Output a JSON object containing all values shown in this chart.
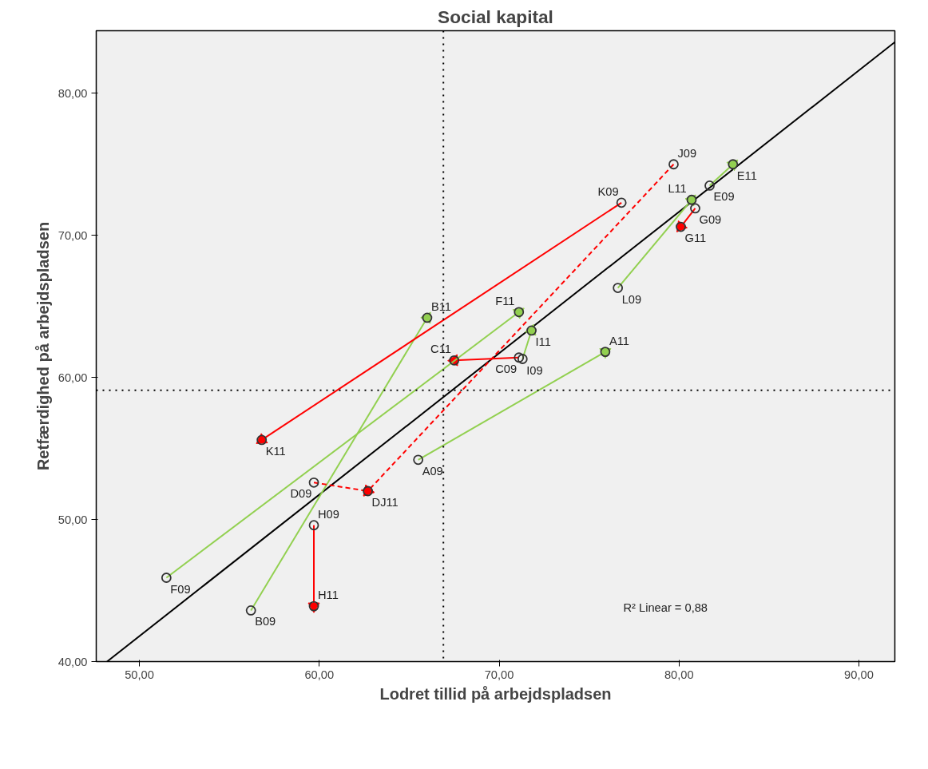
{
  "chart_data": {
    "type": "scatter",
    "title": "Social kapital",
    "xlabel": "Lodret tillid på arbejdspladsen",
    "ylabel": "Retfærdighed på arbejdspladsen",
    "xlim": [
      47.6,
      92.0
    ],
    "ylim": [
      40,
      84.4
    ],
    "xticks": [
      {
        "value": 50,
        "label": "50,00"
      },
      {
        "value": 60,
        "label": "60,00"
      },
      {
        "value": 70,
        "label": "70,00"
      },
      {
        "value": 80,
        "label": "80,00"
      },
      {
        "value": 90,
        "label": "90,00"
      }
    ],
    "yticks": [
      {
        "value": 40,
        "label": "40,00"
      },
      {
        "value": 50,
        "label": "50,00"
      },
      {
        "value": 60,
        "label": "60,00"
      },
      {
        "value": 70,
        "label": "70,00"
      },
      {
        "value": 80,
        "label": "80,00"
      }
    ],
    "grid": false,
    "marker": "circle",
    "series": [
      {
        "color": "#333333",
        "x": [
          65.5,
          75.9,
          56.2,
          66.0,
          71.1,
          67.5,
          59.7,
          62.7,
          81.7,
          83.0,
          51.5,
          71.1,
          80.9,
          80.1,
          59.7,
          59.7,
          71.3,
          71.8,
          79.7,
          76.8,
          56.8,
          76.6,
          80.7
        ],
        "values": [
          54.2,
          61.8,
          43.6,
          64.2,
          61.4,
          61.2,
          52.6,
          52.0,
          73.5,
          75.0,
          45.9,
          64.6,
          71.9,
          70.6,
          49.6,
          43.9,
          61.3,
          63.3,
          75.0,
          72.3,
          55.6,
          66.3,
          72.5
        ]
      },
      {
        "type": "line",
        "color": "#000000",
        "marker": "none",
        "line_style": "solid",
        "x": [
          48.2,
          92.0
        ],
        "values": [
          40.0,
          83.6
        ]
      },
      {
        "type": "line",
        "color": "#92d050",
        "marker": "triangle",
        "line_style": "solid",
        "x": [
          65.5,
          75.9
        ],
        "values": [
          54.2,
          61.8
        ]
      },
      {
        "type": "line",
        "color": "#92d050",
        "marker": "triangle",
        "line_style": "solid",
        "x": [
          56.2,
          66.0
        ],
        "values": [
          43.6,
          64.2
        ]
      },
      {
        "type": "line",
        "color": "#ff0000",
        "marker": "triangle",
        "line_style": "solid",
        "x": [
          71.1,
          67.5
        ],
        "values": [
          61.4,
          61.2
        ]
      },
      {
        "type": "line",
        "color": "#ff0000",
        "marker": "triangle",
        "line_style": "dashed",
        "x": [
          59.7,
          62.7
        ],
        "values": [
          52.6,
          52.0
        ]
      },
      {
        "type": "line",
        "color": "#92d050",
        "marker": "triangle",
        "line_style": "solid",
        "x": [
          81.7,
          83.0
        ],
        "values": [
          73.5,
          75.0
        ]
      },
      {
        "type": "line",
        "color": "#92d050",
        "marker": "triangle",
        "line_style": "solid",
        "x": [
          51.5,
          71.1
        ],
        "values": [
          45.9,
          64.6
        ]
      },
      {
        "type": "line",
        "color": "#ff0000",
        "marker": "triangle",
        "line_style": "solid",
        "x": [
          80.9,
          80.1
        ],
        "values": [
          71.9,
          70.6
        ]
      },
      {
        "type": "line",
        "color": "#ff0000",
        "marker": "triangle",
        "line_style": "solid",
        "x": [
          59.7,
          59.7
        ],
        "values": [
          49.6,
          43.9
        ]
      },
      {
        "type": "line",
        "color": "#92d050",
        "marker": "triangle",
        "line_style": "solid",
        "x": [
          71.3,
          71.8
        ],
        "values": [
          61.3,
          63.3
        ]
      },
      {
        "type": "line",
        "color": "#ff0000",
        "marker": "triangle",
        "line_style": "dashed",
        "x": [
          79.7,
          62.7
        ],
        "values": [
          75.0,
          52.0
        ]
      },
      {
        "type": "line",
        "color": "#ff0000",
        "marker": "triangle",
        "line_style": "solid",
        "x": [
          76.8,
          56.8
        ],
        "values": [
          72.3,
          55.6
        ]
      },
      {
        "type": "line",
        "color": "#92d050",
        "marker": "triangle",
        "line_style": "solid",
        "x": [
          76.6,
          80.7
        ],
        "values": [
          66.3,
          72.5
        ]
      }
    ],
    "ref_lines": [
      {
        "axis": "x",
        "value": 66.9,
        "color": "#000000",
        "line_style": "dotted"
      },
      {
        "axis": "y",
        "value": 59.1,
        "color": "#000000",
        "line_style": "dotted"
      }
    ],
    "annotations": [
      {
        "text": "A09",
        "x": 65.5,
        "y": 54.2
      },
      {
        "text": "A11",
        "x": 75.9,
        "y": 61.8
      },
      {
        "text": "B09",
        "x": 56.2,
        "y": 43.6
      },
      {
        "text": "B11",
        "x": 66.0,
        "y": 64.2
      },
      {
        "text": "C09",
        "x": 71.1,
        "y": 61.4
      },
      {
        "text": "C11",
        "x": 67.5,
        "y": 61.2
      },
      {
        "text": "D09",
        "x": 59.7,
        "y": 52.6
      },
      {
        "text": "DJ11",
        "x": 62.7,
        "y": 52.0
      },
      {
        "text": "E09",
        "x": 81.7,
        "y": 73.5
      },
      {
        "text": "E11",
        "x": 83.0,
        "y": 75.0
      },
      {
        "text": "F09",
        "x": 51.5,
        "y": 45.9
      },
      {
        "text": "F11",
        "x": 71.1,
        "y": 64.6
      },
      {
        "text": "G09",
        "x": 80.9,
        "y": 71.9
      },
      {
        "text": "G11",
        "x": 80.1,
        "y": 70.6
      },
      {
        "text": "H09",
        "x": 59.7,
        "y": 49.6
      },
      {
        "text": "H11",
        "x": 59.7,
        "y": 43.9
      },
      {
        "text": "I09",
        "x": 71.3,
        "y": 61.3
      },
      {
        "text": "I11",
        "x": 71.8,
        "y": 63.3
      },
      {
        "text": "J09",
        "x": 79.7,
        "y": 75.0
      },
      {
        "text": "K09",
        "x": 76.8,
        "y": 72.3
      },
      {
        "text": "K11",
        "x": 56.8,
        "y": 55.6
      },
      {
        "text": "L09",
        "x": 76.6,
        "y": 66.3
      },
      {
        "text": "L11",
        "x": 80.7,
        "y": 72.5
      },
      "R² Linear = 0,88"
    ]
  }
}
